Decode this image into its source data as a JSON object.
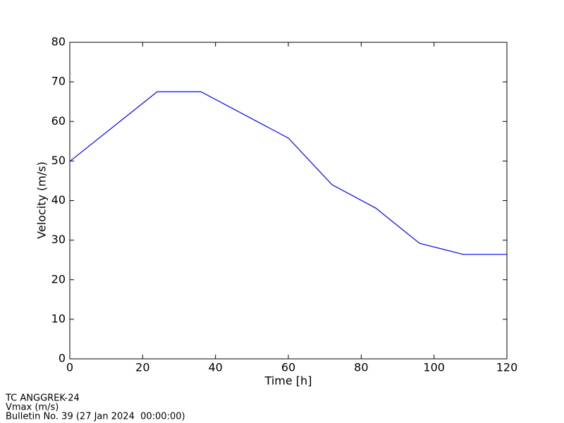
{
  "chart_data": {
    "type": "line",
    "xlabel": "Time [h]",
    "ylabel": "Velocity (m/s)",
    "x": [
      0,
      24,
      36,
      60,
      72,
      84,
      96,
      108,
      120
    ],
    "values": [
      49.9,
      67.5,
      67.5,
      55.8,
      44.0,
      38.1,
      29.2,
      26.4,
      26.4
    ],
    "color": "#0000ff",
    "xlim": [
      0,
      120
    ],
    "xticks": [
      0,
      20,
      40,
      60,
      80,
      100,
      120
    ],
    "ylim": [
      0,
      80
    ],
    "yticks": [
      0,
      10,
      20,
      30,
      40,
      50,
      60,
      70,
      80
    ],
    "grid": false,
    "annotations": [
      "TC ANGGREK-24",
      "Vmax (m/s)",
      "Bulletin No. 39 (27 Jan 2024  00:00:00)"
    ]
  }
}
